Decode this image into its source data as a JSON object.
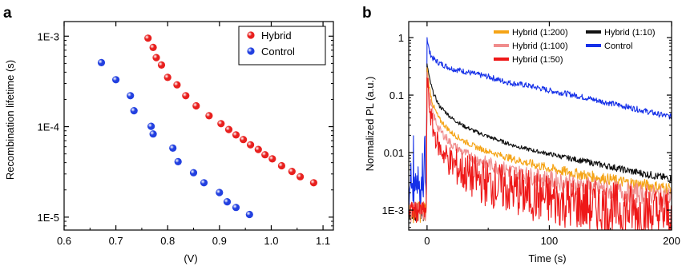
{
  "panels": [
    {
      "label": "a",
      "chart_data": {
        "type": "scatter",
        "xlabel": "(V)",
        "ylabel": "Recombination lifetime (s)",
        "x_scale": "linear",
        "y_scale": "log",
        "xlim": [
          0.6,
          1.12
        ],
        "ylim": [
          7.2e-06,
          0.00145
        ],
        "x_ticks": [
          0.6,
          0.7,
          0.8,
          0.9,
          1.0,
          1.1
        ],
        "x_tick_labels": [
          "0.6",
          "0.7",
          "0.8",
          "0.9",
          "1.0",
          "1.1"
        ],
        "y_ticks": [
          1e-05,
          0.0001,
          0.001
        ],
        "y_tick_labels": [
          "1E-5",
          "1E-4",
          "1E-3"
        ],
        "legend_position": "top-right",
        "grid": false,
        "series": [
          {
            "name": "Hybrid",
            "color": "#e8201e",
            "points": [
              [
                0.762,
                0.00095
              ],
              [
                0.772,
                0.00075
              ],
              [
                0.778,
                0.00058
              ],
              [
                0.788,
                0.00048
              ],
              [
                0.8,
                0.00035
              ],
              [
                0.818,
                0.00029
              ],
              [
                0.835,
                0.00022
              ],
              [
                0.855,
                0.00017
              ],
              [
                0.88,
                0.000132
              ],
              [
                0.903,
                0.000108
              ],
              [
                0.918,
                9.3e-05
              ],
              [
                0.932,
                8.1e-05
              ],
              [
                0.946,
                7.2e-05
              ],
              [
                0.96,
                6.3e-05
              ],
              [
                0.975,
                5.6e-05
              ],
              [
                0.988,
                4.9e-05
              ],
              [
                1.002,
                4.4e-05
              ],
              [
                1.02,
                3.7e-05
              ],
              [
                1.04,
                3.2e-05
              ],
              [
                1.056,
                2.8e-05
              ],
              [
                1.082,
                2.4e-05
              ]
            ]
          },
          {
            "name": "Control",
            "color": "#2240e0",
            "points": [
              [
                0.672,
                0.00051
              ],
              [
                0.7,
                0.00033
              ],
              [
                0.728,
                0.00022
              ],
              [
                0.735,
                0.00015
              ],
              [
                0.768,
                0.000101
              ],
              [
                0.772,
                8.3e-05
              ],
              [
                0.81,
                5.8e-05
              ],
              [
                0.82,
                4.1e-05
              ],
              [
                0.85,
                3.1e-05
              ],
              [
                0.87,
                2.4e-05
              ],
              [
                0.9,
                1.87e-05
              ],
              [
                0.915,
                1.48e-05
              ],
              [
                0.932,
                1.28e-05
              ],
              [
                0.958,
                1.07e-05
              ]
            ]
          }
        ]
      }
    },
    {
      "label": "b",
      "chart_data": {
        "type": "line",
        "xlabel": "Time (s)",
        "ylabel": "Normalized PL (a.u.)",
        "x_scale": "linear",
        "y_scale": "log",
        "xlim": [
          -15,
          200
        ],
        "ylim": [
          0.00045,
          1.9
        ],
        "x_ticks": [
          0,
          100,
          200
        ],
        "x_tick_labels": [
          "0",
          "100",
          "200"
        ],
        "y_ticks": [
          0.001,
          0.01,
          0.1,
          1
        ],
        "y_tick_labels": [
          "1E-3",
          "0.01",
          "0.1",
          "1"
        ],
        "legend_position": "top-right",
        "grid": false,
        "series": [
          {
            "name": "Control",
            "color": "#1530e8",
            "points": [
              [
                0,
                1.0
              ],
              [
                2,
                0.55
              ],
              [
                5,
                0.43
              ],
              [
                10,
                0.36
              ],
              [
                20,
                0.29
              ],
              [
                30,
                0.26
              ],
              [
                40,
                0.23
              ],
              [
                50,
                0.21
              ],
              [
                60,
                0.18
              ],
              [
                70,
                0.16
              ],
              [
                80,
                0.15
              ],
              [
                90,
                0.135
              ],
              [
                100,
                0.12
              ],
              [
                110,
                0.11
              ],
              [
                120,
                0.1
              ],
              [
                130,
                0.09
              ],
              [
                140,
                0.08
              ],
              [
                150,
                0.072
              ],
              [
                160,
                0.065
              ],
              [
                170,
                0.058
              ],
              [
                180,
                0.052
              ],
              [
                190,
                0.046
              ],
              [
                200,
                0.042
              ]
            ]
          },
          {
            "name": "Hybrid (1:10)",
            "color": "#111111",
            "points": [
              [
                0,
                0.35
              ],
              [
                2,
                0.19
              ],
              [
                5,
                0.11
              ],
              [
                10,
                0.065
              ],
              [
                20,
                0.04
              ],
              [
                30,
                0.029
              ],
              [
                40,
                0.023
              ],
              [
                50,
                0.019
              ],
              [
                60,
                0.016
              ],
              [
                70,
                0.0135
              ],
              [
                80,
                0.0118
              ],
              [
                90,
                0.0105
              ],
              [
                100,
                0.0095
              ],
              [
                110,
                0.0085
              ],
              [
                120,
                0.0077
              ],
              [
                130,
                0.007
              ],
              [
                140,
                0.0063
              ],
              [
                150,
                0.0057
              ],
              [
                160,
                0.0051
              ],
              [
                170,
                0.0046
              ],
              [
                180,
                0.0042
              ],
              [
                190,
                0.0038
              ],
              [
                200,
                0.0035
              ]
            ]
          },
          {
            "name": "Hybrid (1:200)",
            "color": "#f5a416",
            "points": [
              [
                0,
                0.3
              ],
              [
                2,
                0.13
              ],
              [
                5,
                0.065
              ],
              [
                10,
                0.038
              ],
              [
                20,
                0.022
              ],
              [
                30,
                0.016
              ],
              [
                40,
                0.0125
              ],
              [
                50,
                0.0105
              ],
              [
                60,
                0.009
              ],
              [
                70,
                0.0078
              ],
              [
                80,
                0.0068
              ],
              [
                90,
                0.006
              ],
              [
                100,
                0.0053
              ],
              [
                110,
                0.0048
              ],
              [
                120,
                0.0044
              ],
              [
                130,
                0.004
              ],
              [
                140,
                0.0037
              ],
              [
                150,
                0.0034
              ],
              [
                160,
                0.0031
              ],
              [
                170,
                0.0029
              ],
              [
                180,
                0.0027
              ],
              [
                190,
                0.0025
              ],
              [
                200,
                0.0024
              ]
            ]
          },
          {
            "name": "Hybrid (1:100)",
            "color": "#f08c8c",
            "points": [
              [
                0,
                0.25
              ],
              [
                2,
                0.09
              ],
              [
                5,
                0.045
              ],
              [
                10,
                0.025
              ],
              [
                20,
                0.014
              ],
              [
                30,
                0.01
              ],
              [
                40,
                0.0078
              ],
              [
                50,
                0.0064
              ],
              [
                60,
                0.0054
              ],
              [
                70,
                0.0047
              ],
              [
                80,
                0.0041
              ],
              [
                90,
                0.0037
              ],
              [
                100,
                0.0034
              ],
              [
                110,
                0.0031
              ],
              [
                120,
                0.0028
              ],
              [
                130,
                0.0026
              ],
              [
                140,
                0.0024
              ],
              [
                150,
                0.0022
              ],
              [
                160,
                0.0021
              ],
              [
                170,
                0.002
              ],
              [
                180,
                0.0019
              ],
              [
                190,
                0.0018
              ],
              [
                200,
                0.0017
              ]
            ]
          },
          {
            "name": "Hybrid (1:50)",
            "color": "#ee1818",
            "points": [
              [
                0,
                0.2
              ],
              [
                2,
                0.06
              ],
              [
                5,
                0.025
              ],
              [
                10,
                0.012
              ],
              [
                20,
                0.0065
              ],
              [
                30,
                0.0045
              ],
              [
                40,
                0.0035
              ],
              [
                50,
                0.0029
              ],
              [
                60,
                0.0025
              ],
              [
                70,
                0.0022
              ],
              [
                80,
                0.0019
              ],
              [
                90,
                0.0017
              ],
              [
                100,
                0.0015
              ],
              [
                110,
                0.0014
              ],
              [
                120,
                0.0013
              ],
              [
                130,
                0.0012
              ],
              [
                140,
                0.0011
              ],
              [
                150,
                0.00105
              ],
              [
                160,
                0.001
              ],
              [
                170,
                0.00095
              ],
              [
                180,
                0.0009
              ],
              [
                190,
                0.00086
              ],
              [
                200,
                0.00082
              ]
            ]
          }
        ]
      }
    }
  ]
}
